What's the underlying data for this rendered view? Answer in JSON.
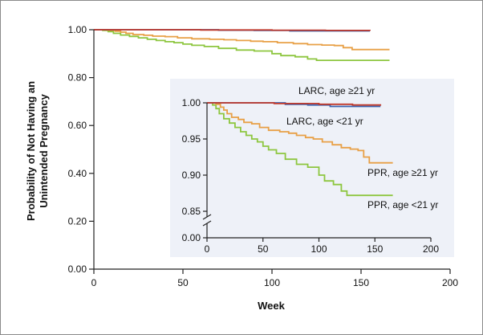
{
  "chart_data": [
    {
      "id": "main",
      "type": "line",
      "step": true,
      "xlabel": "Week",
      "ylabel_lines": [
        "Probability of Not Having an",
        "Unintended Pregnancy"
      ],
      "xlim": [
        0,
        200
      ],
      "ylim": [
        0,
        1
      ],
      "x_ticks": [
        0,
        50,
        100,
        150,
        200
      ],
      "x_tick_labels": [
        "0",
        "50",
        "100",
        "150",
        "200"
      ],
      "y_ticks": [
        0,
        0.2,
        0.4,
        0.6,
        0.8,
        1.0
      ],
      "y_tick_labels": [
        "0.00",
        "0.20",
        "0.40",
        "0.60",
        "0.80",
        "1.00"
      ],
      "series": [
        {
          "name": "LARC, age ≥21 yr",
          "color": "#c0392b",
          "points": [
            [
              0,
              1.0
            ],
            [
              40,
              1.0
            ],
            [
              60,
              0.999
            ],
            [
              100,
              0.998
            ],
            [
              130,
              0.997
            ],
            [
              155,
              0.996
            ]
          ]
        },
        {
          "name": "LARC, age <21 yr",
          "color": "#3a63b0",
          "points": [
            [
              0,
              1.0
            ],
            [
              45,
              1.0
            ],
            [
              70,
              0.998
            ],
            [
              90,
              0.997
            ],
            [
              110,
              0.995
            ],
            [
              155,
              0.995
            ]
          ]
        },
        {
          "name": "PPR, age ≥21 yr",
          "color": "#e8a046",
          "points": [
            [
              0,
              1.0
            ],
            [
              8,
              0.998
            ],
            [
              12,
              0.994
            ],
            [
              15,
              0.99
            ],
            [
              18,
              0.985
            ],
            [
              22,
              0.98
            ],
            [
              28,
              0.977
            ],
            [
              33,
              0.973
            ],
            [
              40,
              0.971
            ],
            [
              47,
              0.966
            ],
            [
              55,
              0.962
            ],
            [
              65,
              0.96
            ],
            [
              73,
              0.958
            ],
            [
              80,
              0.955
            ],
            [
              88,
              0.952
            ],
            [
              95,
              0.95
            ],
            [
              103,
              0.946
            ],
            [
              112,
              0.942
            ],
            [
              120,
              0.938
            ],
            [
              128,
              0.936
            ],
            [
              135,
              0.934
            ],
            [
              140,
              0.925
            ],
            [
              145,
              0.917
            ],
            [
              166,
              0.917
            ]
          ]
        },
        {
          "name": "PPR, age <21 yr",
          "color": "#8dc63f",
          "points": [
            [
              0,
              1.0
            ],
            [
              5,
              0.997
            ],
            [
              8,
              0.992
            ],
            [
              11,
              0.985
            ],
            [
              15,
              0.978
            ],
            [
              20,
              0.972
            ],
            [
              25,
              0.966
            ],
            [
              30,
              0.96
            ],
            [
              35,
              0.955
            ],
            [
              40,
              0.95
            ],
            [
              45,
              0.946
            ],
            [
              50,
              0.94
            ],
            [
              55,
              0.935
            ],
            [
              62,
              0.93
            ],
            [
              70,
              0.922
            ],
            [
              80,
              0.915
            ],
            [
              90,
              0.911
            ],
            [
              100,
              0.9
            ],
            [
              105,
              0.892
            ],
            [
              113,
              0.887
            ],
            [
              120,
              0.878
            ],
            [
              125,
              0.872
            ],
            [
              166,
              0.872
            ]
          ]
        }
      ]
    },
    {
      "id": "inset",
      "type": "line",
      "step": true,
      "xlim": [
        0,
        200
      ],
      "ylim": [
        0.85,
        1.0
      ],
      "axis_break": true,
      "x_ticks": [
        0,
        50,
        100,
        150,
        200
      ],
      "x_tick_labels": [
        "0",
        "50",
        "100",
        "150",
        "200"
      ],
      "y_ticks": [
        1.0,
        0.95,
        0.9,
        0.85
      ],
      "y_tick_labels": [
        "1.00",
        "0.95",
        "0.90",
        "0.85"
      ],
      "y_break_label": "0.00",
      "annotations": [
        "LARC, age ≥21 yr",
        "LARC, age <21 yr",
        "PPR, age ≥21 yr",
        "PPR, age <21 yr"
      ],
      "series_ref": "main"
    }
  ],
  "colors": {
    "frame": "#8a8a8a",
    "inset_background": "#eef1f8"
  }
}
